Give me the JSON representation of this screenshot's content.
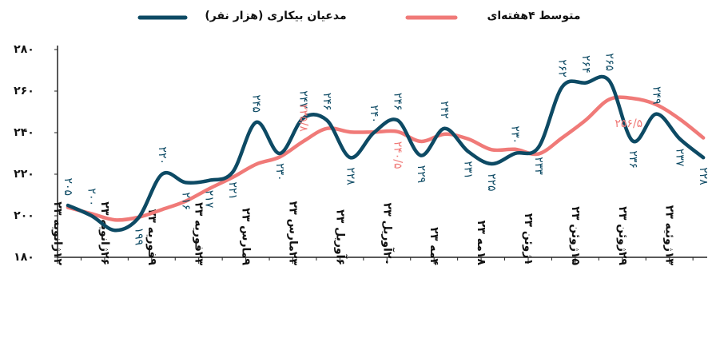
{
  "chart_data": {
    "type": "line",
    "categories": [
      "۱۲ژانویه ۲۳",
      null,
      "۲۶ژانویه ۲۳",
      null,
      "۹فوریه ۲۳",
      null,
      "۲۳فوریه ۲۳",
      null,
      "۹مارس ۲۳",
      null,
      "۲۳مارس ۲۳",
      null,
      "۶آوریل ۲۳",
      null,
      "۲۰آوریل ۲۳",
      null,
      "۴مه ۲۳",
      null,
      "۱۸مه ۲۳",
      null,
      "۱ژوئن ۲۳",
      null,
      "۱۵ژوئن ۲۳",
      null,
      "۲۹ژوئن ۲۳",
      null,
      "۱۳ژوئیه ۲۳",
      null
    ],
    "series": [
      {
        "name": "مدعیان بیکاری (هزار نفر)",
        "color": "#0d4a64",
        "values": [
          205,
          200,
          193,
          199,
          220,
          216,
          217,
          221,
          245,
          230,
          247,
          246,
          228,
          240,
          246,
          229,
          242,
          231,
          225,
          230,
          233,
          262,
          264,
          265,
          236,
          249,
          237,
          228
        ],
        "value_labels": [
          "۲۰۵",
          "۲۰۰",
          null,
          "۱۹۹",
          "۲۲۰",
          "۲۱۶",
          "۲۱۷",
          "۲۲۱",
          "۲۴۵",
          "۲۳۰",
          "۲۴۷",
          "۲۴۶",
          "۲۲۸",
          "۲۴۰",
          "۲۴۶",
          "۲۲۹",
          "۲۴۲",
          "۲۳۱",
          "۲۲۵",
          "۲۳۰",
          "۲۳۳",
          "۲۶۲",
          "۲۶۴",
          "۲۶۵",
          "۲۳۶",
          "۲۴۹",
          "۲۳۷",
          "۲۲۸"
        ]
      },
      {
        "name": "متوسط ۴هفته‌ای",
        "color": "#f07a78",
        "values": [
          204,
          201,
          198,
          199.3,
          203,
          207,
          213,
          218.5,
          224.8,
          228.3,
          235.8,
          242,
          240.3,
          240.3,
          240.5,
          235.8,
          239.3,
          237,
          231.8,
          232,
          229.8,
          237.5,
          246,
          256,
          256.5,
          253.5,
          246.5,
          237.5
        ],
        "value_labels": [
          null,
          null,
          null,
          null,
          null,
          null,
          null,
          null,
          null,
          null,
          "۲۳۵/۸",
          null,
          null,
          null,
          "۲۴۰/۵",
          null,
          null,
          null,
          null,
          null,
          null,
          null,
          null,
          null,
          "۲۵۶/۵",
          null,
          null,
          null
        ]
      }
    ],
    "ylim": [
      180,
      280
    ],
    "yticks": [
      {
        "value": 180,
        "label": "۱۸۰"
      },
      {
        "value": 200,
        "label": "۲۰۰"
      },
      {
        "value": 220,
        "label": "۲۲۰"
      },
      {
        "value": 240,
        "label": "۲۴۰"
      },
      {
        "value": 260,
        "label": "۲۶۰"
      },
      {
        "value": 280,
        "label": "۲۸۰"
      }
    ],
    "grid": false,
    "legend": "top"
  }
}
